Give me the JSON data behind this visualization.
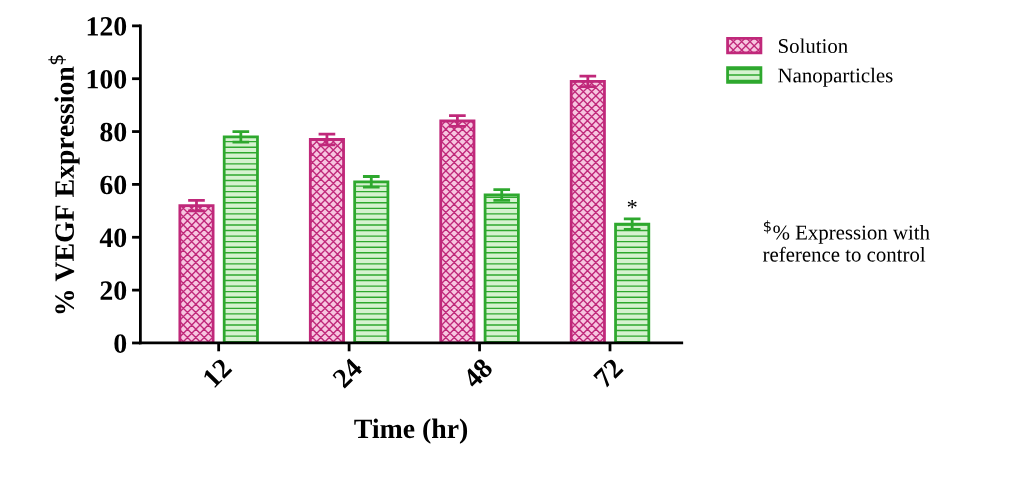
{
  "chart_data": {
    "type": "bar",
    "xlabel": "Time (hr)",
    "ylabel": "% VEGF Expression$^{$}$",
    "categories": [
      "12",
      "24",
      "48",
      "72"
    ],
    "series": [
      {
        "name": "Solution",
        "color": "#c0287a",
        "values": [
          52,
          77,
          84,
          99
        ],
        "errors": [
          2,
          2,
          2,
          2
        ]
      },
      {
        "name": "Nanoparticles",
        "color": "#2ea82e",
        "values": [
          78,
          61,
          56,
          45
        ],
        "errors": [
          2,
          2,
          2,
          2
        ]
      }
    ],
    "ylim": [
      0,
      120
    ],
    "yticks": [
      0,
      20,
      40,
      60,
      80,
      100,
      120
    ],
    "grid": false,
    "legend": "top right",
    "annotations": [
      "*",
      "$^{$}$% Expression with\nreference to control"
    ]
  }
}
